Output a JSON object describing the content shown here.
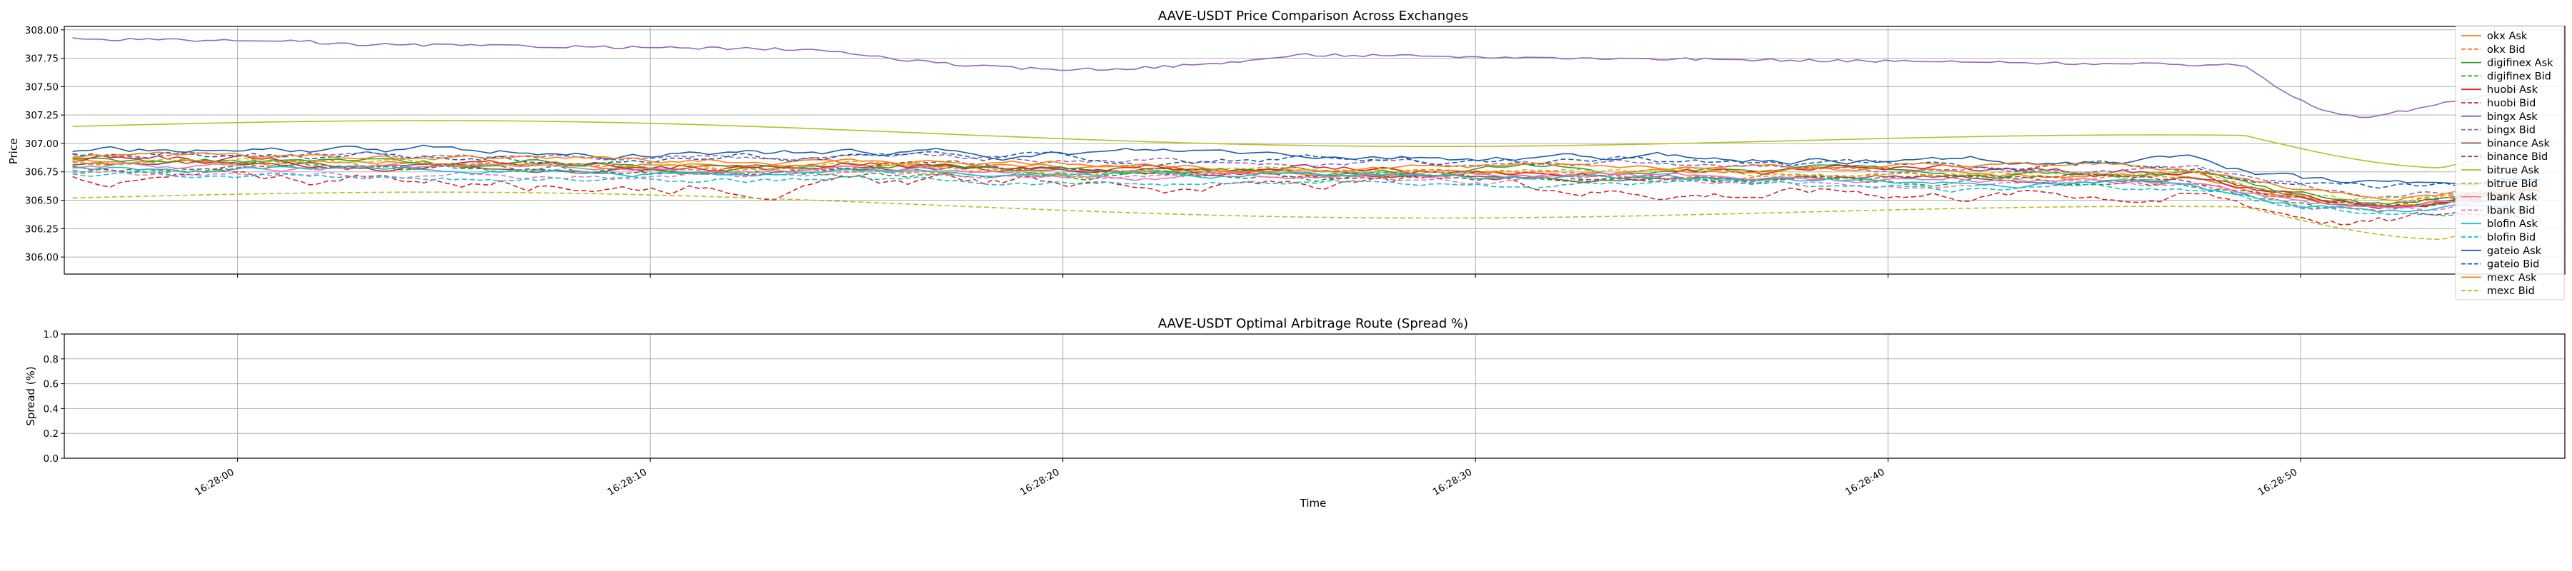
{
  "chart_data": [
    {
      "type": "line",
      "title": "AAVE-USDT Price Comparison Across Exchanges",
      "xlabel": "",
      "ylabel": "Price",
      "x_range_seconds": [
        "16:27:56",
        "16:28:56"
      ],
      "ylim": [
        305.85,
        308.03
      ],
      "yticks": [
        "306.00",
        "306.25",
        "306.50",
        "306.75",
        "307.00",
        "307.25",
        "307.50",
        "307.75",
        "308.00"
      ],
      "xticks": [
        "16:28:00",
        "16:28:10",
        "16:28:20",
        "16:28:30",
        "16:28:40",
        "16:28:50"
      ],
      "grid": true,
      "legend_position": "right",
      "series": [
        {
          "name": "okx Ask",
          "color": "#ff7f0e",
          "dash": "solid",
          "start": 306.86,
          "end": 306.44,
          "noise": 0.02
        },
        {
          "name": "okx Bid",
          "color": "#ff7f0e",
          "dash": "dashed",
          "start": 306.83,
          "end": 306.42,
          "noise": 0.02
        },
        {
          "name": "digifinex Ask",
          "color": "#2ca02c",
          "dash": "solid",
          "start": 306.85,
          "end": 306.46,
          "noise": 0.025
        },
        {
          "name": "digifinex Bid",
          "color": "#2ca02c",
          "dash": "dashed",
          "start": 306.78,
          "end": 306.38,
          "noise": 0.025
        },
        {
          "name": "huobi Ask",
          "color": "#d62728",
          "dash": "solid",
          "start": 306.85,
          "end": 306.45,
          "noise": 0.03
        },
        {
          "name": "huobi Bid",
          "color": "#d62728",
          "dash": "dashed",
          "start": 306.7,
          "end": 306.32,
          "noise": 0.04
        },
        {
          "name": "bingx Ask",
          "color": "#9467bd",
          "dash": "solid",
          "start": 307.9,
          "end": 307.5,
          "noise": 0.01
        },
        {
          "name": "bingx Bid",
          "color": "#9467bd",
          "dash": "dashed",
          "start": 306.92,
          "end": 306.5,
          "noise": 0.02
        },
        {
          "name": "binance Ask",
          "color": "#8c564b",
          "dash": "solid",
          "start": 306.82,
          "end": 306.45,
          "noise": 0.02
        },
        {
          "name": "binance Bid",
          "color": "#8c564b",
          "dash": "dashed",
          "start": 306.8,
          "end": 306.43,
          "noise": 0.02
        },
        {
          "name": "bitrue Ask",
          "color": "#bcbd22",
          "dash": "solid",
          "start": 307.15,
          "end": 306.75,
          "noise": 0.0
        },
        {
          "name": "bitrue Bid",
          "color": "#bcbd22",
          "dash": "dashed",
          "start": 306.52,
          "end": 306.12,
          "noise": 0.0
        },
        {
          "name": "lbank Ask",
          "color": "#e377c2",
          "dash": "solid",
          "start": 306.8,
          "end": 306.44,
          "noise": 0.02
        },
        {
          "name": "lbank Bid",
          "color": "#e377c2",
          "dash": "dashed",
          "start": 306.75,
          "end": 306.4,
          "noise": 0.02
        },
        {
          "name": "blofin Ask",
          "color": "#17becf",
          "dash": "solid",
          "start": 306.78,
          "end": 306.4,
          "noise": 0.02
        },
        {
          "name": "blofin Bid",
          "color": "#17becf",
          "dash": "dashed",
          "start": 306.72,
          "end": 306.37,
          "noise": 0.02
        },
        {
          "name": "gateio Ask",
          "color": "#1f5fa8",
          "dash": "solid",
          "start": 306.95,
          "end": 306.62,
          "noise": 0.025
        },
        {
          "name": "gateio Bid",
          "color": "#1f5fa8",
          "dash": "dashed",
          "start": 306.92,
          "end": 306.58,
          "noise": 0.025
        },
        {
          "name": "mexc Ask",
          "color": "#ff7f0e",
          "dash": "solid",
          "start": 306.88,
          "end": 306.48,
          "noise": 0.02
        },
        {
          "name": "mexc Bid",
          "color": "#bcbd22",
          "dash": "dashed",
          "start": 306.84,
          "end": 306.46,
          "noise": 0.02
        }
      ]
    },
    {
      "type": "line",
      "title": "AAVE-USDT Optimal Arbitrage Route (Spread %)",
      "xlabel": "Time",
      "ylabel": "Spread (%)",
      "ylim": [
        0.0,
        1.0
      ],
      "yticks": [
        "0.0",
        "0.2",
        "0.4",
        "0.6",
        "0.8",
        "1.0"
      ],
      "xticks": [
        "16:28:00",
        "16:28:10",
        "16:28:20",
        "16:28:30",
        "16:28:40",
        "16:28:50"
      ],
      "grid": true,
      "series": []
    }
  ]
}
